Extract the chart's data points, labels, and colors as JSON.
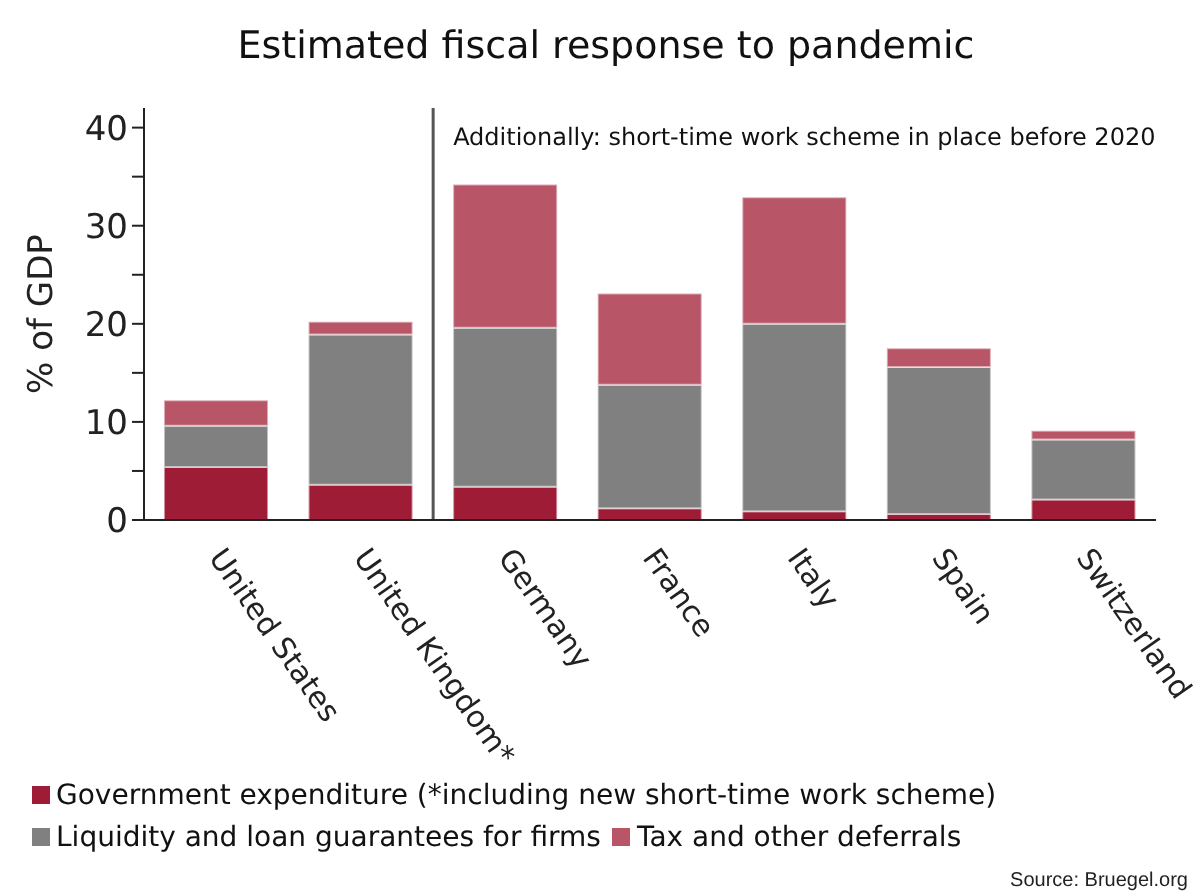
{
  "chart_data": {
    "type": "bar",
    "title": "Estimated fiscal response to pandemic",
    "ylabel": "% of GDP",
    "categories": [
      "United States",
      "United Kingdom*",
      "Germany",
      "France",
      "Italy",
      "Spain",
      "Switzerland"
    ],
    "stacked": true,
    "series": [
      {
        "name": "Government expenditure (*including new short-time work scheme)",
        "color": "#9e1c35",
        "values": [
          5.4,
          3.6,
          3.4,
          1.2,
          0.9,
          0.6,
          2.1
        ]
      },
      {
        "name": "Liquidity and loan guarantees for firms",
        "color": "#808080",
        "values": [
          4.2,
          15.3,
          16.2,
          12.6,
          19.1,
          15.0,
          6.1
        ]
      },
      {
        "name": "Tax and other deferrals",
        "color": "#b85668",
        "values": [
          2.6,
          1.3,
          14.6,
          9.3,
          12.9,
          1.9,
          0.9
        ]
      }
    ],
    "ylim": [
      0,
      42
    ],
    "yticks": [
      0,
      {
        "value": 5,
        "label": null
      },
      10,
      {
        "value": 15,
        "label": null
      },
      20,
      {
        "value": 25,
        "label": null
      },
      30,
      {
        "value": 35,
        "label": null
      },
      40
    ],
    "legend": "bottom",
    "annotations": [
      "Additionally: short-time work scheme in place before 2020",
      "Source: Bruegel.org"
    ]
  }
}
